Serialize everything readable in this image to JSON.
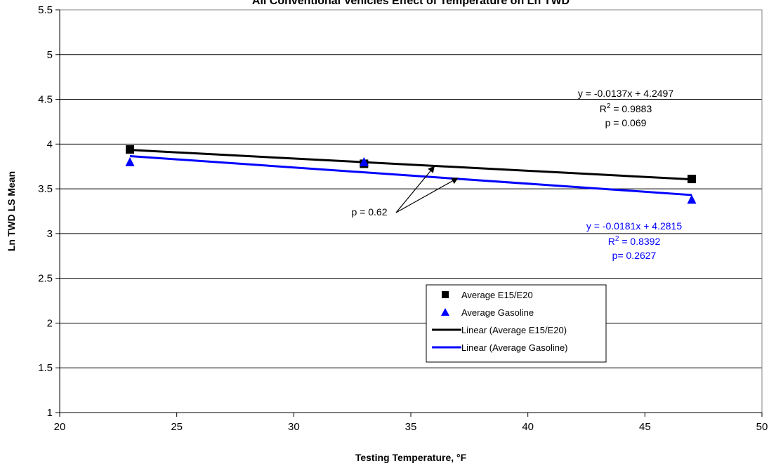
{
  "chart_data": {
    "type": "scatter",
    "title": "All Conventional Vehicles Effect of Temperature on Ln TWD",
    "xlabel": "Testing Temperature, °F",
    "ylabel": "Ln TWD LS Mean",
    "xlim": [
      20,
      50
    ],
    "ylim": [
      1,
      5.5
    ],
    "xticks": [
      "20",
      "25",
      "30",
      "35",
      "40",
      "45",
      "50"
    ],
    "yticks": [
      "1",
      "1.5",
      "2",
      "2.5",
      "3",
      "3.5",
      "4",
      "4.5",
      "5",
      "5.5"
    ],
    "grid": "horizontal",
    "legend_position": "bottom-center",
    "series": [
      {
        "name": "Average E15/E20",
        "marker": "square",
        "color": "#000000",
        "x": [
          23,
          33,
          47
        ],
        "y": [
          3.94,
          3.78,
          3.61
        ]
      },
      {
        "name": "Average Gasoline",
        "marker": "triangle",
        "color": "#0000FF",
        "x": [
          23,
          33,
          47
        ],
        "y": [
          3.8,
          3.8,
          3.38
        ]
      }
    ],
    "trendlines": [
      {
        "name": "Linear (Average E15/E20)",
        "color": "#000000",
        "slope": -0.0137,
        "intercept": 4.2497,
        "x_range": [
          23,
          47
        ]
      },
      {
        "name": "Linear (Average Gasoline)",
        "color": "#0000FF",
        "slope": -0.0181,
        "intercept": 4.2815,
        "x_range": [
          23,
          47
        ]
      }
    ],
    "annotations": {
      "e15": {
        "equation": "y = -0.0137x + 4.2497",
        "r2_label": "R",
        "r2_sup": "2",
        "r2_value": " = 0.9883",
        "p": "p = 0.069",
        "color": "#000000"
      },
      "gas": {
        "equation": "y = -0.0181x + 4.2815",
        "r2_label": "R",
        "r2_sup": "2",
        "r2_value": " = 0.8392",
        "p": "p= 0.2627",
        "color": "#0000FF"
      },
      "diff": {
        "p": "p = 0.62",
        "arrow_targets": [
          [
            36,
            3.75
          ],
          [
            37,
            3.62
          ]
        ]
      }
    }
  }
}
